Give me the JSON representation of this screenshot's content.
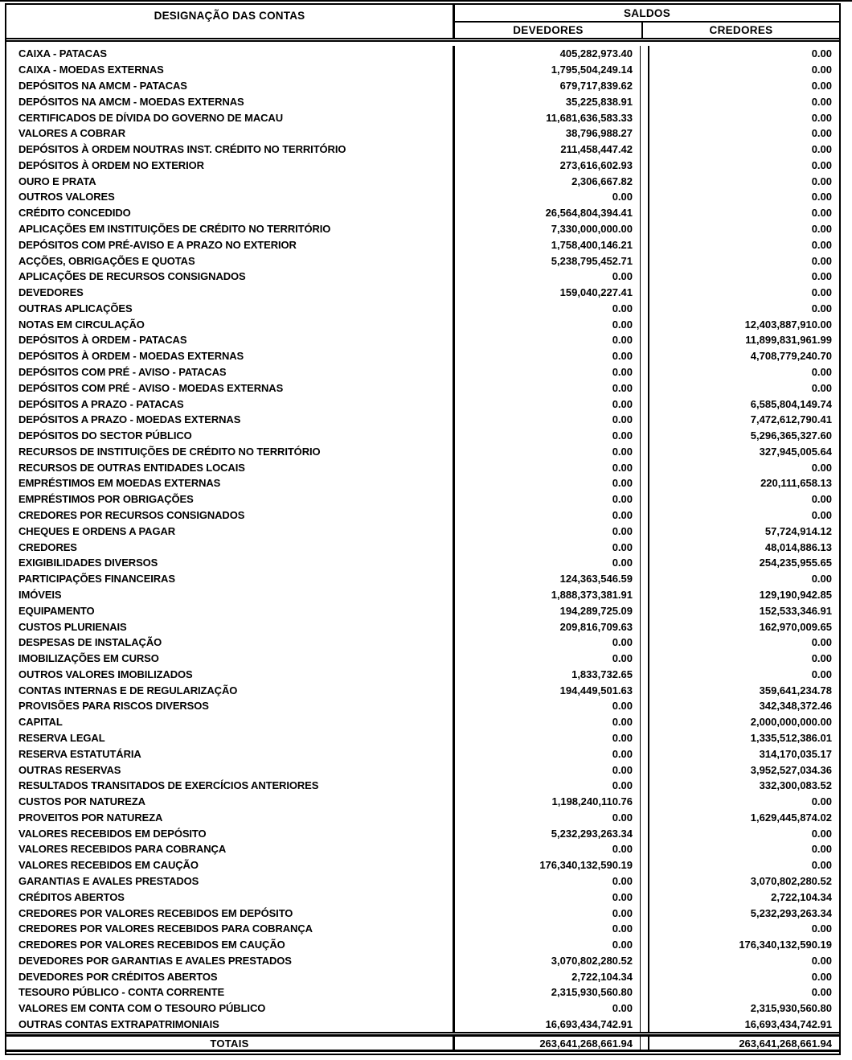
{
  "document": {
    "columns": {
      "designacao": "DESIGNAÇÃO DAS CONTAS",
      "saldos": "SALDOS",
      "devedores": "DEVEDORES",
      "credores": "CREDORES"
    },
    "rows": [
      {
        "name": "CAIXA - PATACAS",
        "dev": "405,282,973.40",
        "cred": "0.00"
      },
      {
        "name": "CAIXA - MOEDAS EXTERNAS",
        "dev": "1,795,504,249.14",
        "cred": "0.00"
      },
      {
        "name": "DEPÓSITOS NA AMCM - PATACAS",
        "dev": "679,717,839.62",
        "cred": "0.00"
      },
      {
        "name": "DEPÓSITOS NA AMCM - MOEDAS EXTERNAS",
        "dev": "35,225,838.91",
        "cred": "0.00"
      },
      {
        "name": "CERTIFICADOS DE DÍVIDA DO GOVERNO DE MACAU",
        "dev": "11,681,636,583.33",
        "cred": "0.00"
      },
      {
        "name": "VALORES A COBRAR",
        "dev": "38,796,988.27",
        "cred": "0.00"
      },
      {
        "name": "DEPÓSITOS À ORDEM NOUTRAS INST. CRÉDITO NO TERRITÓRIO",
        "dev": "211,458,447.42",
        "cred": "0.00"
      },
      {
        "name": "DEPÓSITOS À ORDEM NO EXTERIOR",
        "dev": "273,616,602.93",
        "cred": "0.00"
      },
      {
        "name": "OURO E PRATA",
        "dev": "2,306,667.82",
        "cred": "0.00"
      },
      {
        "name": "OUTROS VALORES",
        "dev": "0.00",
        "cred": "0.00"
      },
      {
        "name": "CRÉDITO CONCEDIDO",
        "dev": "26,564,804,394.41",
        "cred": "0.00"
      },
      {
        "name": "APLICAÇÕES EM INSTITUIÇÕES DE CRÉDITO NO TERRITÓRIO",
        "dev": "7,330,000,000.00",
        "cred": "0.00"
      },
      {
        "name": "DEPÓSITOS COM PRÉ-AVISO E A PRAZO NO EXTERIOR",
        "dev": "1,758,400,146.21",
        "cred": "0.00"
      },
      {
        "name": "ACÇÕES, OBRIGAÇÕES E QUOTAS",
        "dev": "5,238,795,452.71",
        "cred": "0.00"
      },
      {
        "name": "APLICAÇÕES DE RECURSOS CONSIGNADOS",
        "dev": "0.00",
        "cred": "0.00"
      },
      {
        "name": "DEVEDORES",
        "dev": "159,040,227.41",
        "cred": "0.00"
      },
      {
        "name": "OUTRAS APLICAÇÕES",
        "dev": "0.00",
        "cred": "0.00"
      },
      {
        "name": "NOTAS EM CIRCULAÇÃO",
        "dev": "0.00",
        "cred": "12,403,887,910.00"
      },
      {
        "name": "DEPÓSITOS À ORDEM - PATACAS",
        "dev": "0.00",
        "cred": "11,899,831,961.99"
      },
      {
        "name": "DEPÓSITOS À ORDEM - MOEDAS EXTERNAS",
        "dev": "0.00",
        "cred": "4,708,779,240.70"
      },
      {
        "name": "DEPÓSITOS COM PRÉ - AVISO - PATACAS",
        "dev": "0.00",
        "cred": "0.00"
      },
      {
        "name": "DEPÓSITOS COM PRÉ - AVISO - MOEDAS EXTERNAS",
        "dev": "0.00",
        "cred": "0.00"
      },
      {
        "name": "DEPÓSITOS A PRAZO - PATACAS",
        "dev": "0.00",
        "cred": "6,585,804,149.74"
      },
      {
        "name": "DEPÓSITOS A PRAZO - MOEDAS EXTERNAS",
        "dev": "0.00",
        "cred": "7,472,612,790.41"
      },
      {
        "name": "DEPÓSITOS DO SECTOR PÚBLICO",
        "dev": "0.00",
        "cred": "5,296,365,327.60"
      },
      {
        "name": "RECURSOS DE INSTITUIÇÕES DE CRÉDITO NO TERRITÓRIO",
        "dev": "0.00",
        "cred": "327,945,005.64"
      },
      {
        "name": "RECURSOS DE OUTRAS ENTIDADES LOCAIS",
        "dev": "0.00",
        "cred": "0.00"
      },
      {
        "name": "EMPRÉSTIMOS EM MOEDAS EXTERNAS",
        "dev": "0.00",
        "cred": "220,111,658.13"
      },
      {
        "name": "EMPRÉSTIMOS POR OBRIGAÇÕES",
        "dev": "0.00",
        "cred": "0.00"
      },
      {
        "name": "CREDORES POR RECURSOS CONSIGNADOS",
        "dev": "0.00",
        "cred": "0.00"
      },
      {
        "name": "CHEQUES E ORDENS A PAGAR",
        "dev": "0.00",
        "cred": "57,724,914.12"
      },
      {
        "name": "CREDORES",
        "dev": "0.00",
        "cred": "48,014,886.13"
      },
      {
        "name": "EXIGIBILIDADES DIVERSOS",
        "dev": "0.00",
        "cred": "254,235,955.65"
      },
      {
        "name": "PARTICIPAÇÕES FINANCEIRAS",
        "dev": "124,363,546.59",
        "cred": "0.00"
      },
      {
        "name": "IMÓVEIS",
        "dev": "1,888,373,381.91",
        "cred": "129,190,942.85"
      },
      {
        "name": "EQUIPAMENTO",
        "dev": "194,289,725.09",
        "cred": "152,533,346.91"
      },
      {
        "name": "CUSTOS PLURIENAIS",
        "dev": "209,816,709.63",
        "cred": "162,970,009.65"
      },
      {
        "name": "DESPESAS DE INSTALAÇÃO",
        "dev": "0.00",
        "cred": "0.00"
      },
      {
        "name": "IMOBILIZAÇÕES EM CURSO",
        "dev": "0.00",
        "cred": "0.00"
      },
      {
        "name": "OUTROS VALORES IMOBILIZADOS",
        "dev": "1,833,732.65",
        "cred": "0.00"
      },
      {
        "name": "CONTAS INTERNAS E DE REGULARIZAÇÃO",
        "dev": "194,449,501.63",
        "cred": "359,641,234.78"
      },
      {
        "name": "PROVISÕES PARA RISCOS DIVERSOS",
        "dev": "0.00",
        "cred": "342,348,372.46"
      },
      {
        "name": "CAPITAL",
        "dev": "0.00",
        "cred": "2,000,000,000.00"
      },
      {
        "name": "RESERVA LEGAL",
        "dev": "0.00",
        "cred": "1,335,512,386.01"
      },
      {
        "name": "RESERVA ESTATUTÁRIA",
        "dev": "0.00",
        "cred": "314,170,035.17"
      },
      {
        "name": "OUTRAS RESERVAS",
        "dev": "0.00",
        "cred": "3,952,527,034.36"
      },
      {
        "name": "RESULTADOS TRANSITADOS DE EXERCÍCIOS ANTERIORES",
        "dev": "0.00",
        "cred": "332,300,083.52"
      },
      {
        "name": "CUSTOS POR NATUREZA",
        "dev": "1,198,240,110.76",
        "cred": "0.00"
      },
      {
        "name": "PROVEITOS POR NATUREZA",
        "dev": "0.00",
        "cred": "1,629,445,874.02"
      },
      {
        "name": "VALORES RECEBIDOS EM DEPÓSITO",
        "dev": "5,232,293,263.34",
        "cred": "0.00"
      },
      {
        "name": "VALORES RECEBIDOS PARA COBRANÇA",
        "dev": "0.00",
        "cred": "0.00"
      },
      {
        "name": "VALORES RECEBIDOS EM CAUÇÃO",
        "dev": "176,340,132,590.19",
        "cred": "0.00"
      },
      {
        "name": "GARANTIAS E AVALES PRESTADOS",
        "dev": "0.00",
        "cred": "3,070,802,280.52"
      },
      {
        "name": "CRÉDITOS ABERTOS",
        "dev": "0.00",
        "cred": "2,722,104.34"
      },
      {
        "name": "CREDORES POR VALORES RECEBIDOS EM DEPÓSITO",
        "dev": "0.00",
        "cred": "5,232,293,263.34"
      },
      {
        "name": "CREDORES POR VALORES RECEBIDOS PARA COBRANÇA",
        "dev": "0.00",
        "cred": "0.00"
      },
      {
        "name": "CREDORES POR VALORES RECEBIDOS EM CAUÇÃO",
        "dev": "0.00",
        "cred": "176,340,132,590.19"
      },
      {
        "name": "DEVEDORES POR GARANTIAS E AVALES PRESTADOS",
        "dev": "3,070,802,280.52",
        "cred": "0.00"
      },
      {
        "name": "DEVEDORES POR CRÉDITOS ABERTOS",
        "dev": "2,722,104.34",
        "cred": "0.00"
      },
      {
        "name": "TESOURO PÚBLICO - CONTA CORRENTE",
        "dev": "2,315,930,560.80",
        "cred": "0.00"
      },
      {
        "name": "VALORES EM CONTA COM O TESOURO PÚBLICO",
        "dev": "0.00",
        "cred": "2,315,930,560.80"
      },
      {
        "name": "OUTRAS CONTAS EXTRAPATRIMONIAIS",
        "dev": "16,693,434,742.91",
        "cred": "16,693,434,742.91"
      }
    ],
    "totals": {
      "label": "TOTAIS",
      "dev": "263,641,268,661.94",
      "cred": "263,641,268,661.94"
    }
  }
}
